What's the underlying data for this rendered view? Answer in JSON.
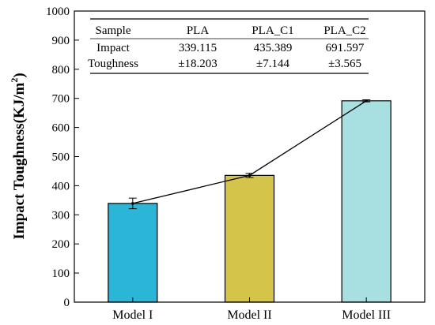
{
  "chart_data": {
    "type": "bar",
    "categories": [
      "Model I",
      "Model II",
      "Model III"
    ],
    "values": [
      339.115,
      435.389,
      691.597
    ],
    "errors": [
      18.203,
      7.144,
      3.565
    ],
    "bar_colors": [
      "#2bb5d6",
      "#d4c44a",
      "#a8dfe0"
    ],
    "ylabel_main": "Impact Toughness(KJ/m",
    "ylabel_sup": "2",
    "ylabel_end": ")",
    "ylim": [
      0,
      1000
    ],
    "yticks": [
      0,
      100,
      200,
      300,
      400,
      500,
      600,
      700,
      800,
      900,
      1000
    ],
    "overlay_line": true,
    "table": {
      "header": [
        "Sample",
        "PLA",
        "PLA_C1",
        "PLA_C2"
      ],
      "rows": [
        [
          "Impact",
          "339.115",
          "435.389",
          "691.597"
        ],
        [
          "Toughness",
          "±18.203",
          "±7.144",
          "±3.565"
        ]
      ]
    }
  }
}
